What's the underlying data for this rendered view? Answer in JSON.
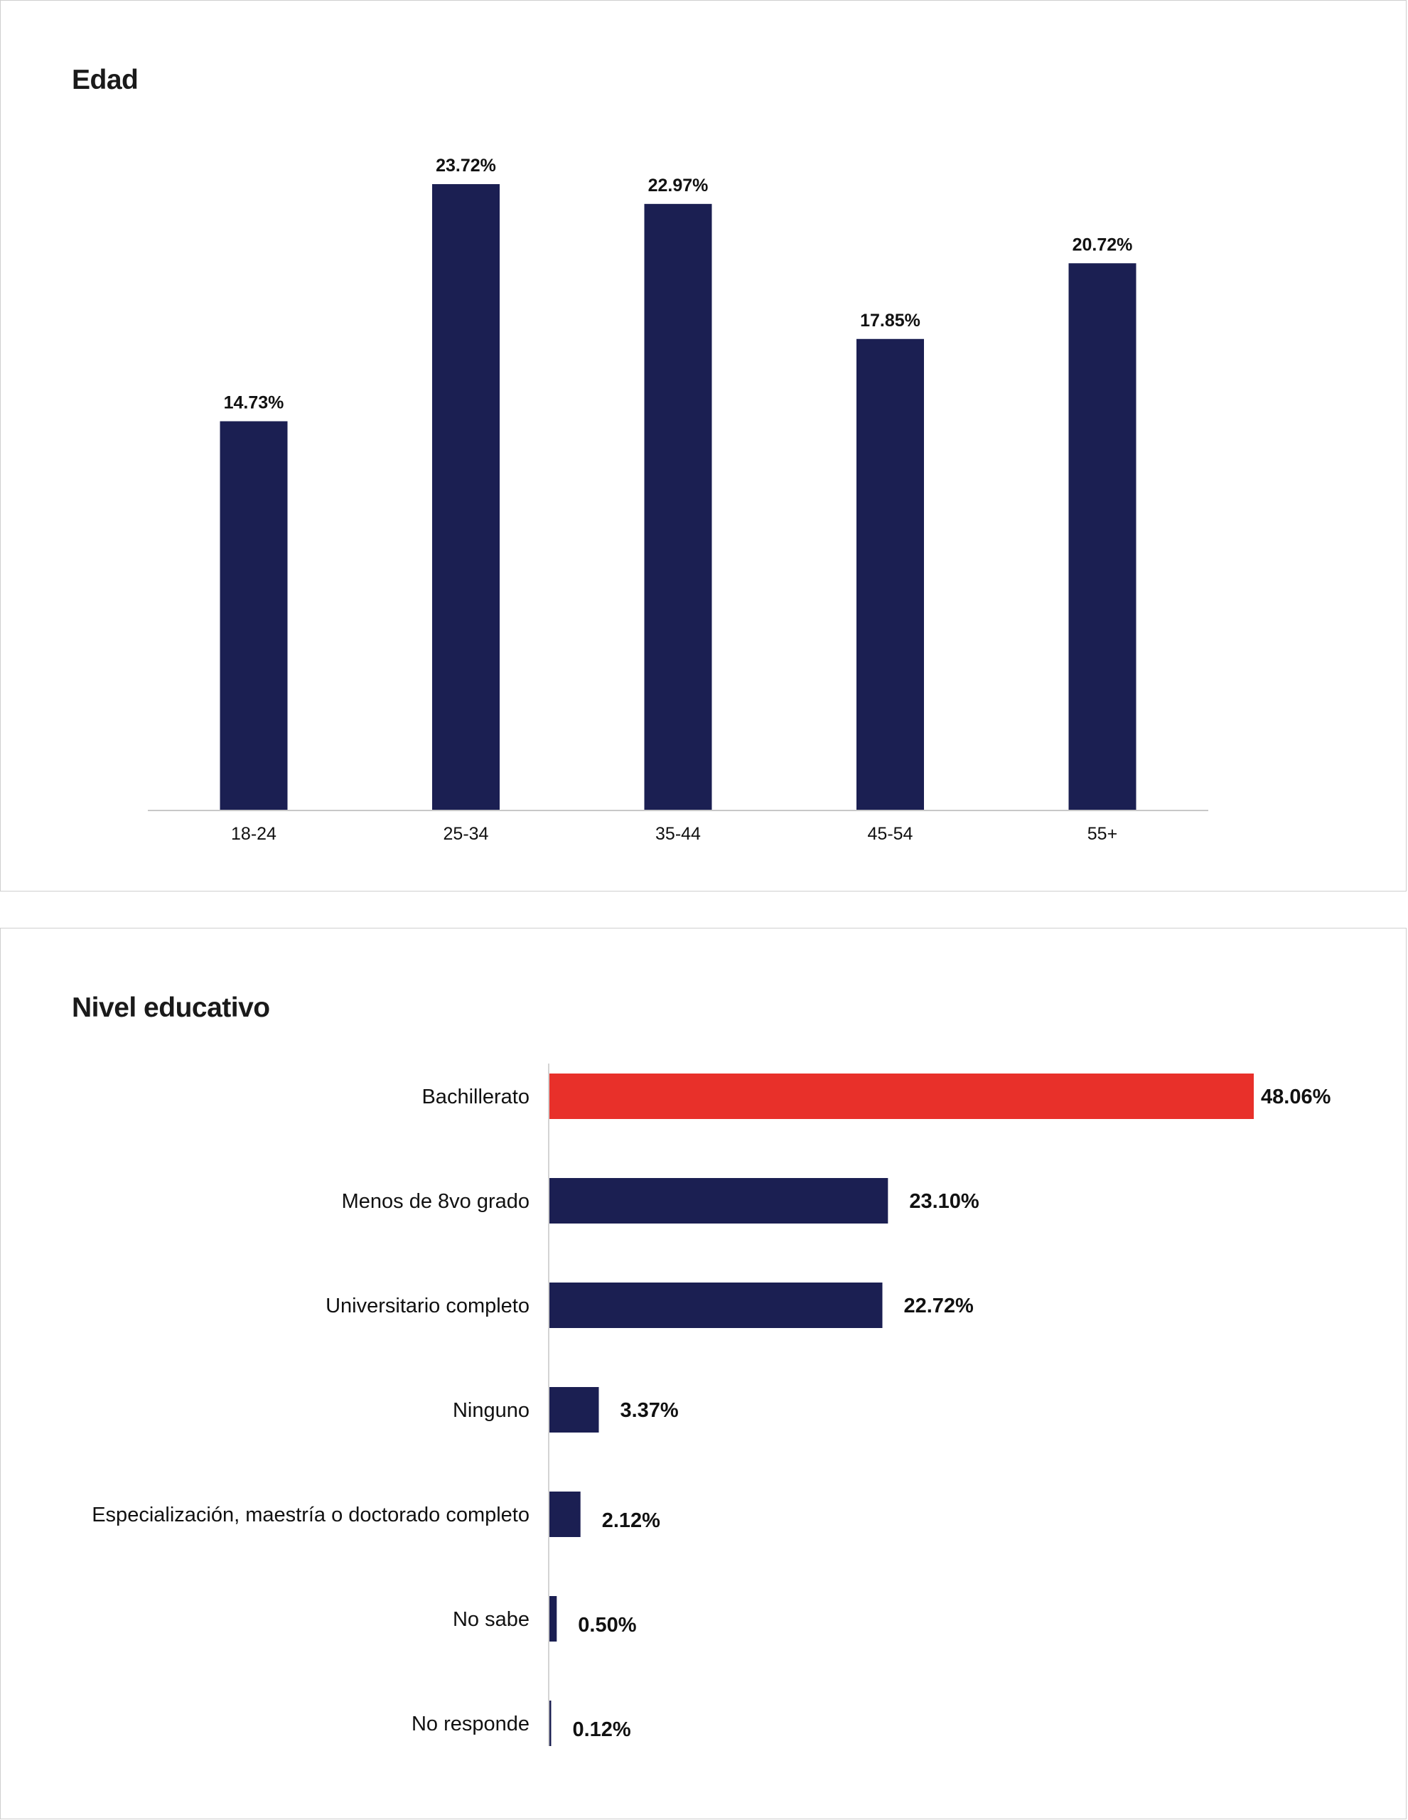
{
  "chart_data": [
    {
      "type": "bar",
      "orientation": "vertical",
      "title": "Edad",
      "categories": [
        "18-24",
        "25-34",
        "35-44",
        "45-54",
        "55+"
      ],
      "values": [
        14.73,
        23.72,
        22.97,
        17.85,
        20.72
      ],
      "value_labels": [
        "14.73%",
        "23.72%",
        "22.97%",
        "17.85%",
        "20.72%"
      ],
      "unit": "%",
      "colors": [
        "#1b1f52",
        "#1b1f52",
        "#1b1f52",
        "#1b1f52",
        "#1b1f52"
      ],
      "xlabel": "",
      "ylabel": "",
      "grid": false
    },
    {
      "type": "bar",
      "orientation": "horizontal",
      "title": "Nivel educativo",
      "categories": [
        "Bachillerato",
        "Menos de 8vo grado",
        "Universitario completo",
        "Ninguno",
        "Especialización, maestría o doctorado completo",
        "No sabe",
        "No responde"
      ],
      "values": [
        48.06,
        23.1,
        22.72,
        3.37,
        2.12,
        0.5,
        0.12
      ],
      "value_labels": [
        "48.06%",
        "23.10%",
        "22.72%",
        "3.37%",
        "2.12%",
        "0.50%",
        "0.12%"
      ],
      "unit": "%",
      "colors": [
        "#e8302a",
        "#1b1f52",
        "#1b1f52",
        "#1b1f52",
        "#1b1f52",
        "#1b1f52",
        "#1b1f52"
      ],
      "xlabel": "",
      "ylabel": "",
      "grid": false
    }
  ]
}
